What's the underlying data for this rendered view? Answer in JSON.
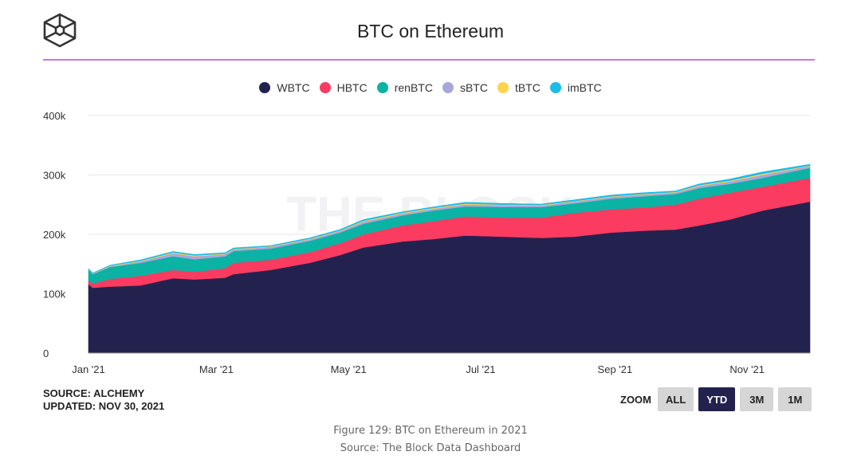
{
  "header": {
    "title": "BTC on Ethereum",
    "logo_icon": "the-block-cube-logo"
  },
  "footer": {
    "source": "SOURCE: ALCHEMY",
    "updated": "UPDATED: NOV 30, 2021",
    "zoom_label": "ZOOM",
    "zoom_buttons": [
      {
        "label": "ALL",
        "active": false
      },
      {
        "label": "YTD",
        "active": true
      },
      {
        "label": "3M",
        "active": false
      },
      {
        "label": "1M",
        "active": false
      }
    ]
  },
  "caption": {
    "figure": "Figure 129: BTC on Ethereum in 2021",
    "source": "Source: The Block Data Dashboard"
  },
  "watermark": "THE BLOCK",
  "chart_data": {
    "type": "area",
    "stacked": true,
    "title": "BTC on Ethereum",
    "xlabel": "",
    "ylabel": "",
    "ylim": [
      0,
      400000
    ],
    "yticks": [
      0,
      100000,
      200000,
      300000,
      400000
    ],
    "ytick_labels": [
      "0",
      "100k",
      "200k",
      "300k",
      "400k"
    ],
    "xtick_labels": [
      "Jan '21",
      "Mar '21",
      "May '21",
      "Jul '21",
      "Sep '21",
      "Nov '21"
    ],
    "xtick_days": [
      0,
      59,
      120,
      181,
      243,
      304
    ],
    "x_days": [
      0,
      2,
      10,
      24,
      39,
      49,
      63,
      67,
      84,
      102,
      116,
      127,
      145,
      159,
      174,
      192,
      209,
      224,
      241,
      256,
      271,
      282,
      296,
      311,
      333
    ],
    "legend_position": "top",
    "grid": true,
    "series": [
      {
        "name": "WBTC",
        "color": "#23224f",
        "values": [
          116000,
          110000,
          112000,
          114000,
          126000,
          124000,
          127000,
          133000,
          140000,
          152000,
          165000,
          178000,
          188000,
          192000,
          198000,
          196000,
          194000,
          196000,
          203000,
          206000,
          208000,
          215000,
          225000,
          240000,
          255000
        ]
      },
      {
        "name": "HBTC",
        "color": "#fb3b60",
        "values": [
          6000,
          7000,
          13000,
          16000,
          14000,
          13000,
          16000,
          19000,
          17000,
          18000,
          20000,
          22000,
          27000,
          30000,
          32000,
          32000,
          34000,
          40000,
          39000,
          39000,
          42000,
          45000,
          45000,
          40000,
          40000
        ]
      },
      {
        "name": "renBTC",
        "color": "#0bb3a4",
        "values": [
          19000,
          16000,
          20000,
          22000,
          23000,
          21000,
          20000,
          20000,
          19000,
          19000,
          18000,
          18000,
          17000,
          18000,
          17000,
          18000,
          18000,
          16000,
          18000,
          19000,
          18000,
          18000,
          15000,
          15000,
          17000
        ]
      },
      {
        "name": "sBTC",
        "color": "#a9a6da",
        "values": [
          600,
          1000,
          1500,
          2500,
          5000,
          5000,
          3500,
          2500,
          3000,
          2500,
          2500,
          3500,
          3000,
          3000,
          3500,
          3000,
          2500,
          3000,
          3000,
          3000,
          2500,
          3500,
          4000,
          5000,
          3000
        ]
      },
      {
        "name": "tBTC",
        "color": "#fcd34d",
        "values": [
          200,
          500,
          700,
          1000,
          1500,
          1500,
          1000,
          1000,
          1000,
          1000,
          1000,
          1500,
          1500,
          1500,
          1500,
          1000,
          1000,
          1000,
          1000,
          1000,
          1000,
          1500,
          1500,
          2000,
          1000
        ]
      },
      {
        "name": "imBTC",
        "color": "#1bbde8",
        "values": [
          200,
          500,
          800,
          1500,
          1500,
          1500,
          1500,
          1500,
          1000,
          1500,
          1500,
          2000,
          1500,
          1500,
          2000,
          2000,
          1500,
          2000,
          2000,
          2000,
          1500,
          2000,
          2500,
          3000,
          2000
        ]
      }
    ]
  }
}
